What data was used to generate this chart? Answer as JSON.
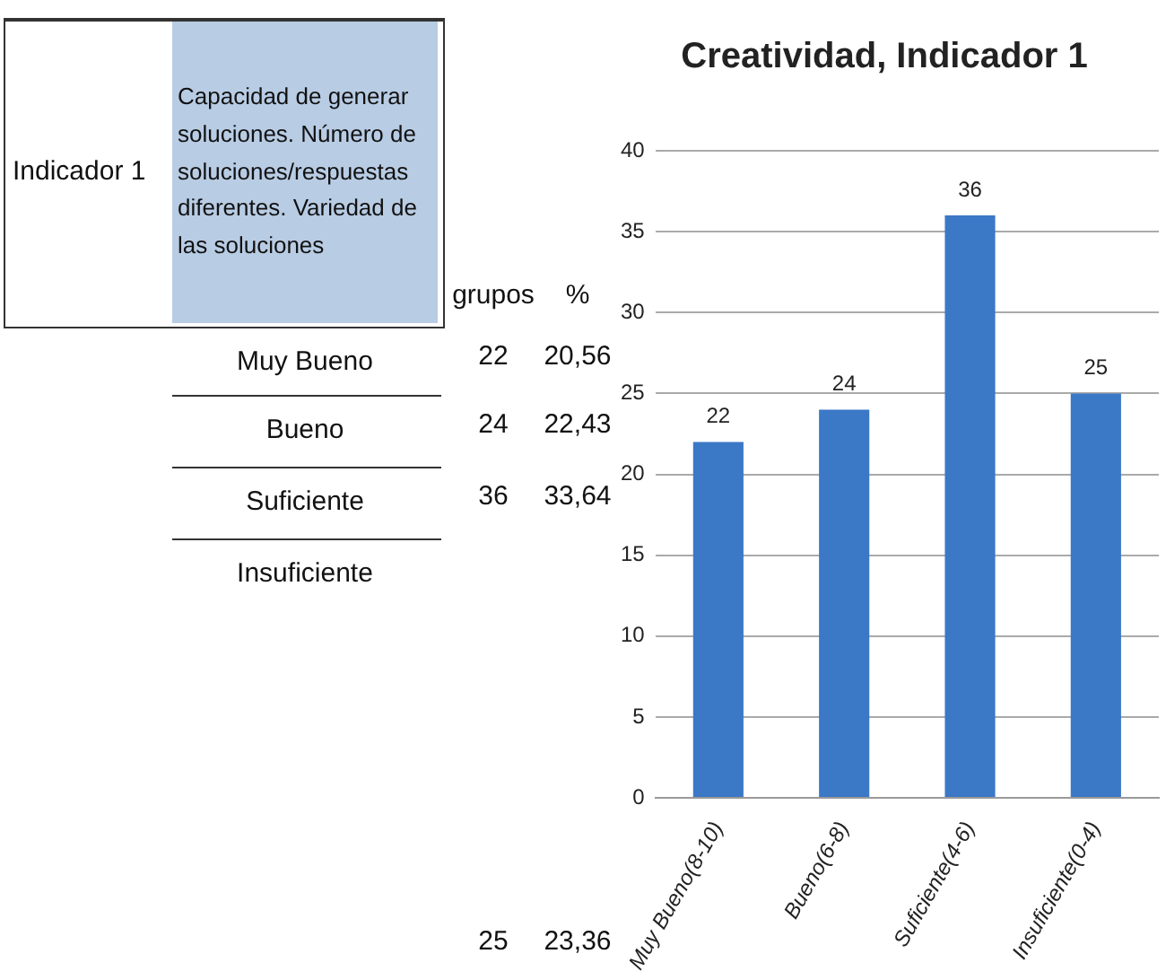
{
  "chart_data": {
    "type": "bar",
    "title": "Creatividad, Indicador 1",
    "categories": [
      "Muy Bueno(8-10)",
      "Bueno(6-8)",
      "Suficiente(4-6)",
      "Insuficiente(0-4)"
    ],
    "values": [
      22,
      24,
      36,
      25
    ],
    "color": "#3b78c6",
    "ylim": [
      0,
      40
    ],
    "yticks": [
      0,
      5,
      10,
      15,
      20,
      25,
      30,
      35,
      40
    ],
    "grid": "y",
    "data_labels": true,
    "legend": false,
    "annotations": [
      "Indicador 1",
      "Capacidad de generar soluciones. Número de soluciones/respuestas diferentes. Variedad de las soluciones",
      "grupos",
      "%",
      "Muy Bueno",
      "22",
      "20,56",
      "Bueno",
      "24",
      "22,43",
      "Suficiente",
      "36",
      "33,64",
      "Insuficiente",
      "25",
      "23,36"
    ]
  }
}
